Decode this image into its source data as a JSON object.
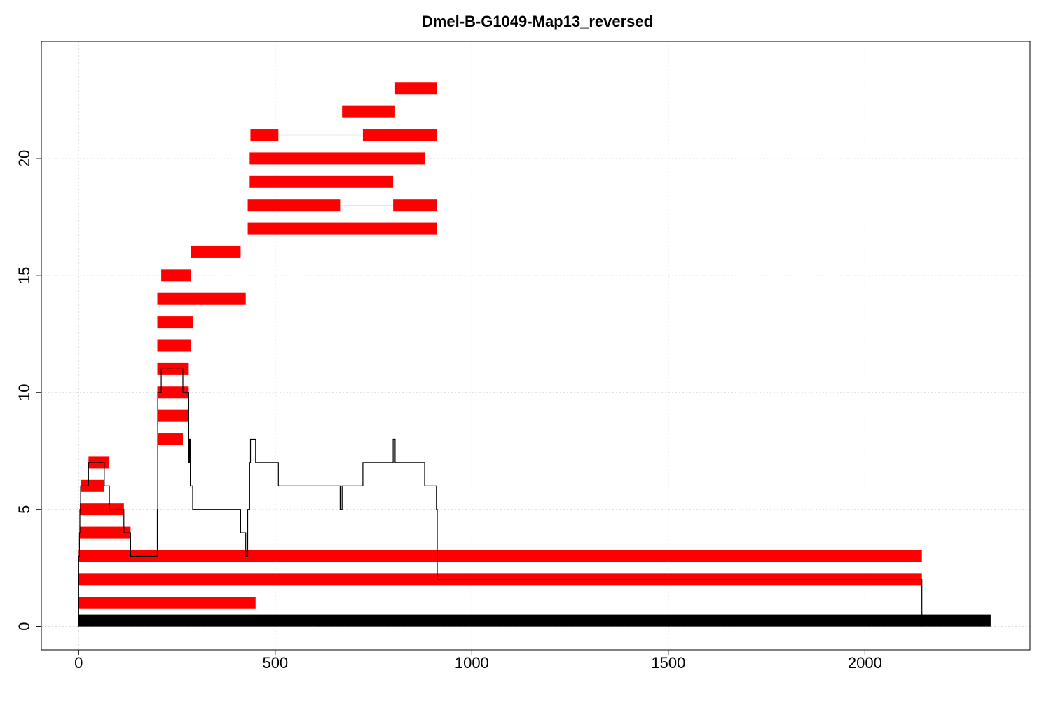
{
  "chart_data": {
    "type": "bar",
    "title": "Dmel-B-G1049-Map13_reversed",
    "xlabel": "",
    "ylabel": "",
    "xlim": [
      -95,
      2420
    ],
    "ylim": [
      -1,
      25
    ],
    "x_ticks": [
      0,
      500,
      1000,
      1500,
      2000
    ],
    "y_ticks": [
      0,
      5,
      10,
      15,
      20
    ],
    "grid": true,
    "colors": {
      "read": "#ff0000",
      "reference": "#000000",
      "coverage": "#000000",
      "gap_line": "#cfcfcf"
    },
    "reference": {
      "start": 0,
      "end": 2320
    },
    "reads": [
      {
        "row": 1,
        "segments": [
          [
            0,
            450
          ]
        ]
      },
      {
        "row": 2,
        "segments": [
          [
            0,
            2145
          ]
        ]
      },
      {
        "row": 3,
        "segments": [
          [
            0,
            2145
          ]
        ]
      },
      {
        "row": 4,
        "segments": [
          [
            2,
            132
          ]
        ]
      },
      {
        "row": 5,
        "segments": [
          [
            3,
            115
          ]
        ]
      },
      {
        "row": 6,
        "segments": [
          [
            5,
            65
          ]
        ]
      },
      {
        "row": 7,
        "segments": [
          [
            25,
            78
          ]
        ]
      },
      {
        "row": 8,
        "segments": [
          [
            200,
            265
          ]
        ]
      },
      {
        "row": 9,
        "segments": [
          [
            200,
            280
          ]
        ]
      },
      {
        "row": 10,
        "segments": [
          [
            200,
            280
          ]
        ]
      },
      {
        "row": 11,
        "segments": [
          [
            200,
            280
          ]
        ]
      },
      {
        "row": 12,
        "segments": [
          [
            200,
            285
          ]
        ]
      },
      {
        "row": 13,
        "segments": [
          [
            200,
            290
          ]
        ]
      },
      {
        "row": 14,
        "segments": [
          [
            200,
            425
          ]
        ]
      },
      {
        "row": 15,
        "segments": [
          [
            210,
            285
          ]
        ]
      },
      {
        "row": 16,
        "segments": [
          [
            285,
            412
          ]
        ]
      },
      {
        "row": 17,
        "segments": [
          [
            430,
            912
          ]
        ]
      },
      {
        "row": 18,
        "segments": [
          [
            430,
            665
          ],
          [
            800,
            912
          ]
        ]
      },
      {
        "row": 19,
        "segments": [
          [
            435,
            800
          ]
        ]
      },
      {
        "row": 20,
        "segments": [
          [
            435,
            880
          ]
        ]
      },
      {
        "row": 21,
        "segments": [
          [
            437,
            508
          ],
          [
            723,
            912
          ]
        ]
      },
      {
        "row": 22,
        "segments": [
          [
            670,
            805
          ]
        ]
      },
      {
        "row": 23,
        "segments": [
          [
            805,
            912
          ]
        ]
      }
    ],
    "coverage": [
      [
        0,
        0
      ],
      [
        0,
        3
      ],
      [
        2,
        3
      ],
      [
        2,
        4
      ],
      [
        3,
        4
      ],
      [
        3,
        5
      ],
      [
        5,
        5
      ],
      [
        5,
        6
      ],
      [
        25,
        6
      ],
      [
        25,
        7
      ],
      [
        65,
        7
      ],
      [
        65,
        6
      ],
      [
        78,
        6
      ],
      [
        78,
        5
      ],
      [
        115,
        5
      ],
      [
        115,
        4
      ],
      [
        132,
        4
      ],
      [
        132,
        3
      ],
      [
        200,
        3
      ],
      [
        200,
        5
      ],
      [
        201,
        5
      ],
      [
        201,
        10
      ],
      [
        210,
        10
      ],
      [
        210,
        11
      ],
      [
        265,
        11
      ],
      [
        265,
        10
      ],
      [
        280,
        10
      ],
      [
        280,
        7
      ],
      [
        282,
        7
      ],
      [
        282,
        8
      ],
      [
        284,
        8
      ],
      [
        284,
        6
      ],
      [
        290,
        6
      ],
      [
        290,
        5
      ],
      [
        412,
        5
      ],
      [
        412,
        4
      ],
      [
        425,
        4
      ],
      [
        425,
        3
      ],
      [
        428,
        3
      ],
      [
        430,
        3
      ],
      [
        430,
        5
      ],
      [
        435,
        5
      ],
      [
        435,
        7
      ],
      [
        437,
        7
      ],
      [
        437,
        8
      ],
      [
        450,
        8
      ],
      [
        450,
        7
      ],
      [
        508,
        7
      ],
      [
        508,
        6
      ],
      [
        665,
        6
      ],
      [
        665,
        5
      ],
      [
        670,
        5
      ],
      [
        670,
        6
      ],
      [
        723,
        6
      ],
      [
        723,
        7
      ],
      [
        800,
        7
      ],
      [
        800,
        8
      ],
      [
        805,
        8
      ],
      [
        805,
        7
      ],
      [
        880,
        7
      ],
      [
        880,
        6
      ],
      [
        910,
        6
      ],
      [
        910,
        5
      ],
      [
        912,
        5
      ],
      [
        912,
        2
      ],
      [
        2145,
        2
      ],
      [
        2145,
        0
      ]
    ]
  }
}
